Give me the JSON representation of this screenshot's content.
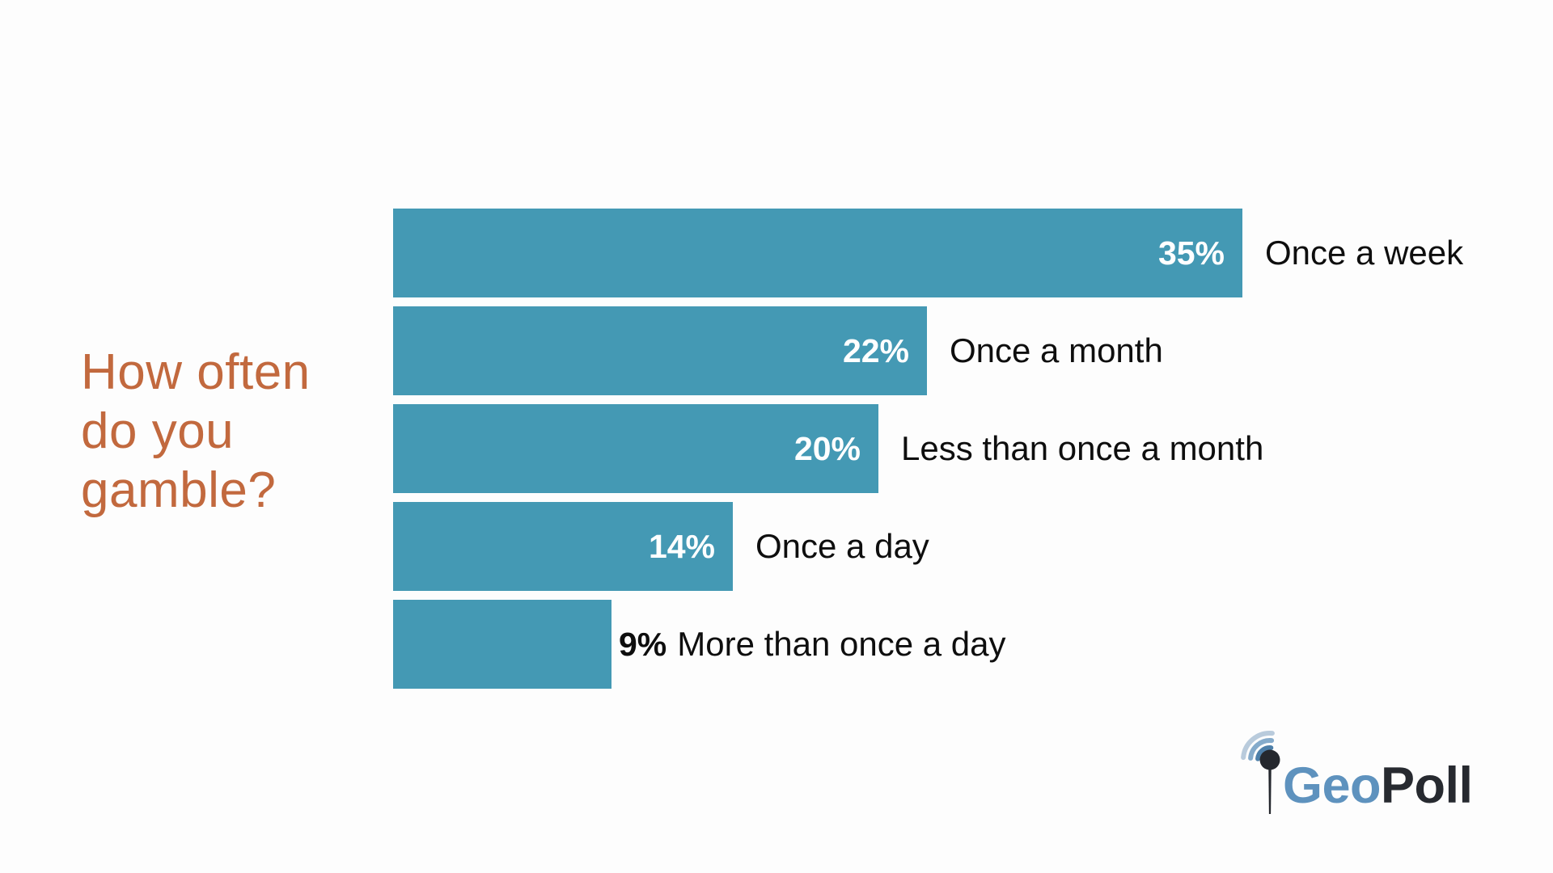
{
  "page": {
    "background": "#fdfdfd"
  },
  "title": {
    "text": "How often do you gamble?",
    "color": "#c2693e"
  },
  "chart_data": {
    "type": "bar",
    "orientation": "horizontal",
    "title": "How often do you gamble?",
    "categories": [
      "Once a week",
      "Once a month",
      "Less than once a month",
      "Once a day",
      "More than once a day"
    ],
    "values": [
      35,
      22,
      20,
      14,
      9
    ],
    "value_labels": [
      "35%",
      "22%",
      "20%",
      "14%",
      "9%"
    ],
    "bar_color": "#4499b4",
    "value_label_color_inside": "#ffffff",
    "value_label_color_outside": "#0e0e0e",
    "category_label_color": "#0e0e0e",
    "xlim": [
      0,
      35
    ],
    "grid": false,
    "axes_visible": false,
    "legend": false,
    "value_label_inside_threshold": 10
  },
  "logo": {
    "brand_first": "Geo",
    "brand_second": "Poll",
    "colors": {
      "first": "#5e92be",
      "second": "#272a30",
      "pin": "#25282e",
      "arc_inner": "#4d7fa9",
      "arc_mid": "#85abcb",
      "arc_outer": "#b9cbdc"
    }
  }
}
